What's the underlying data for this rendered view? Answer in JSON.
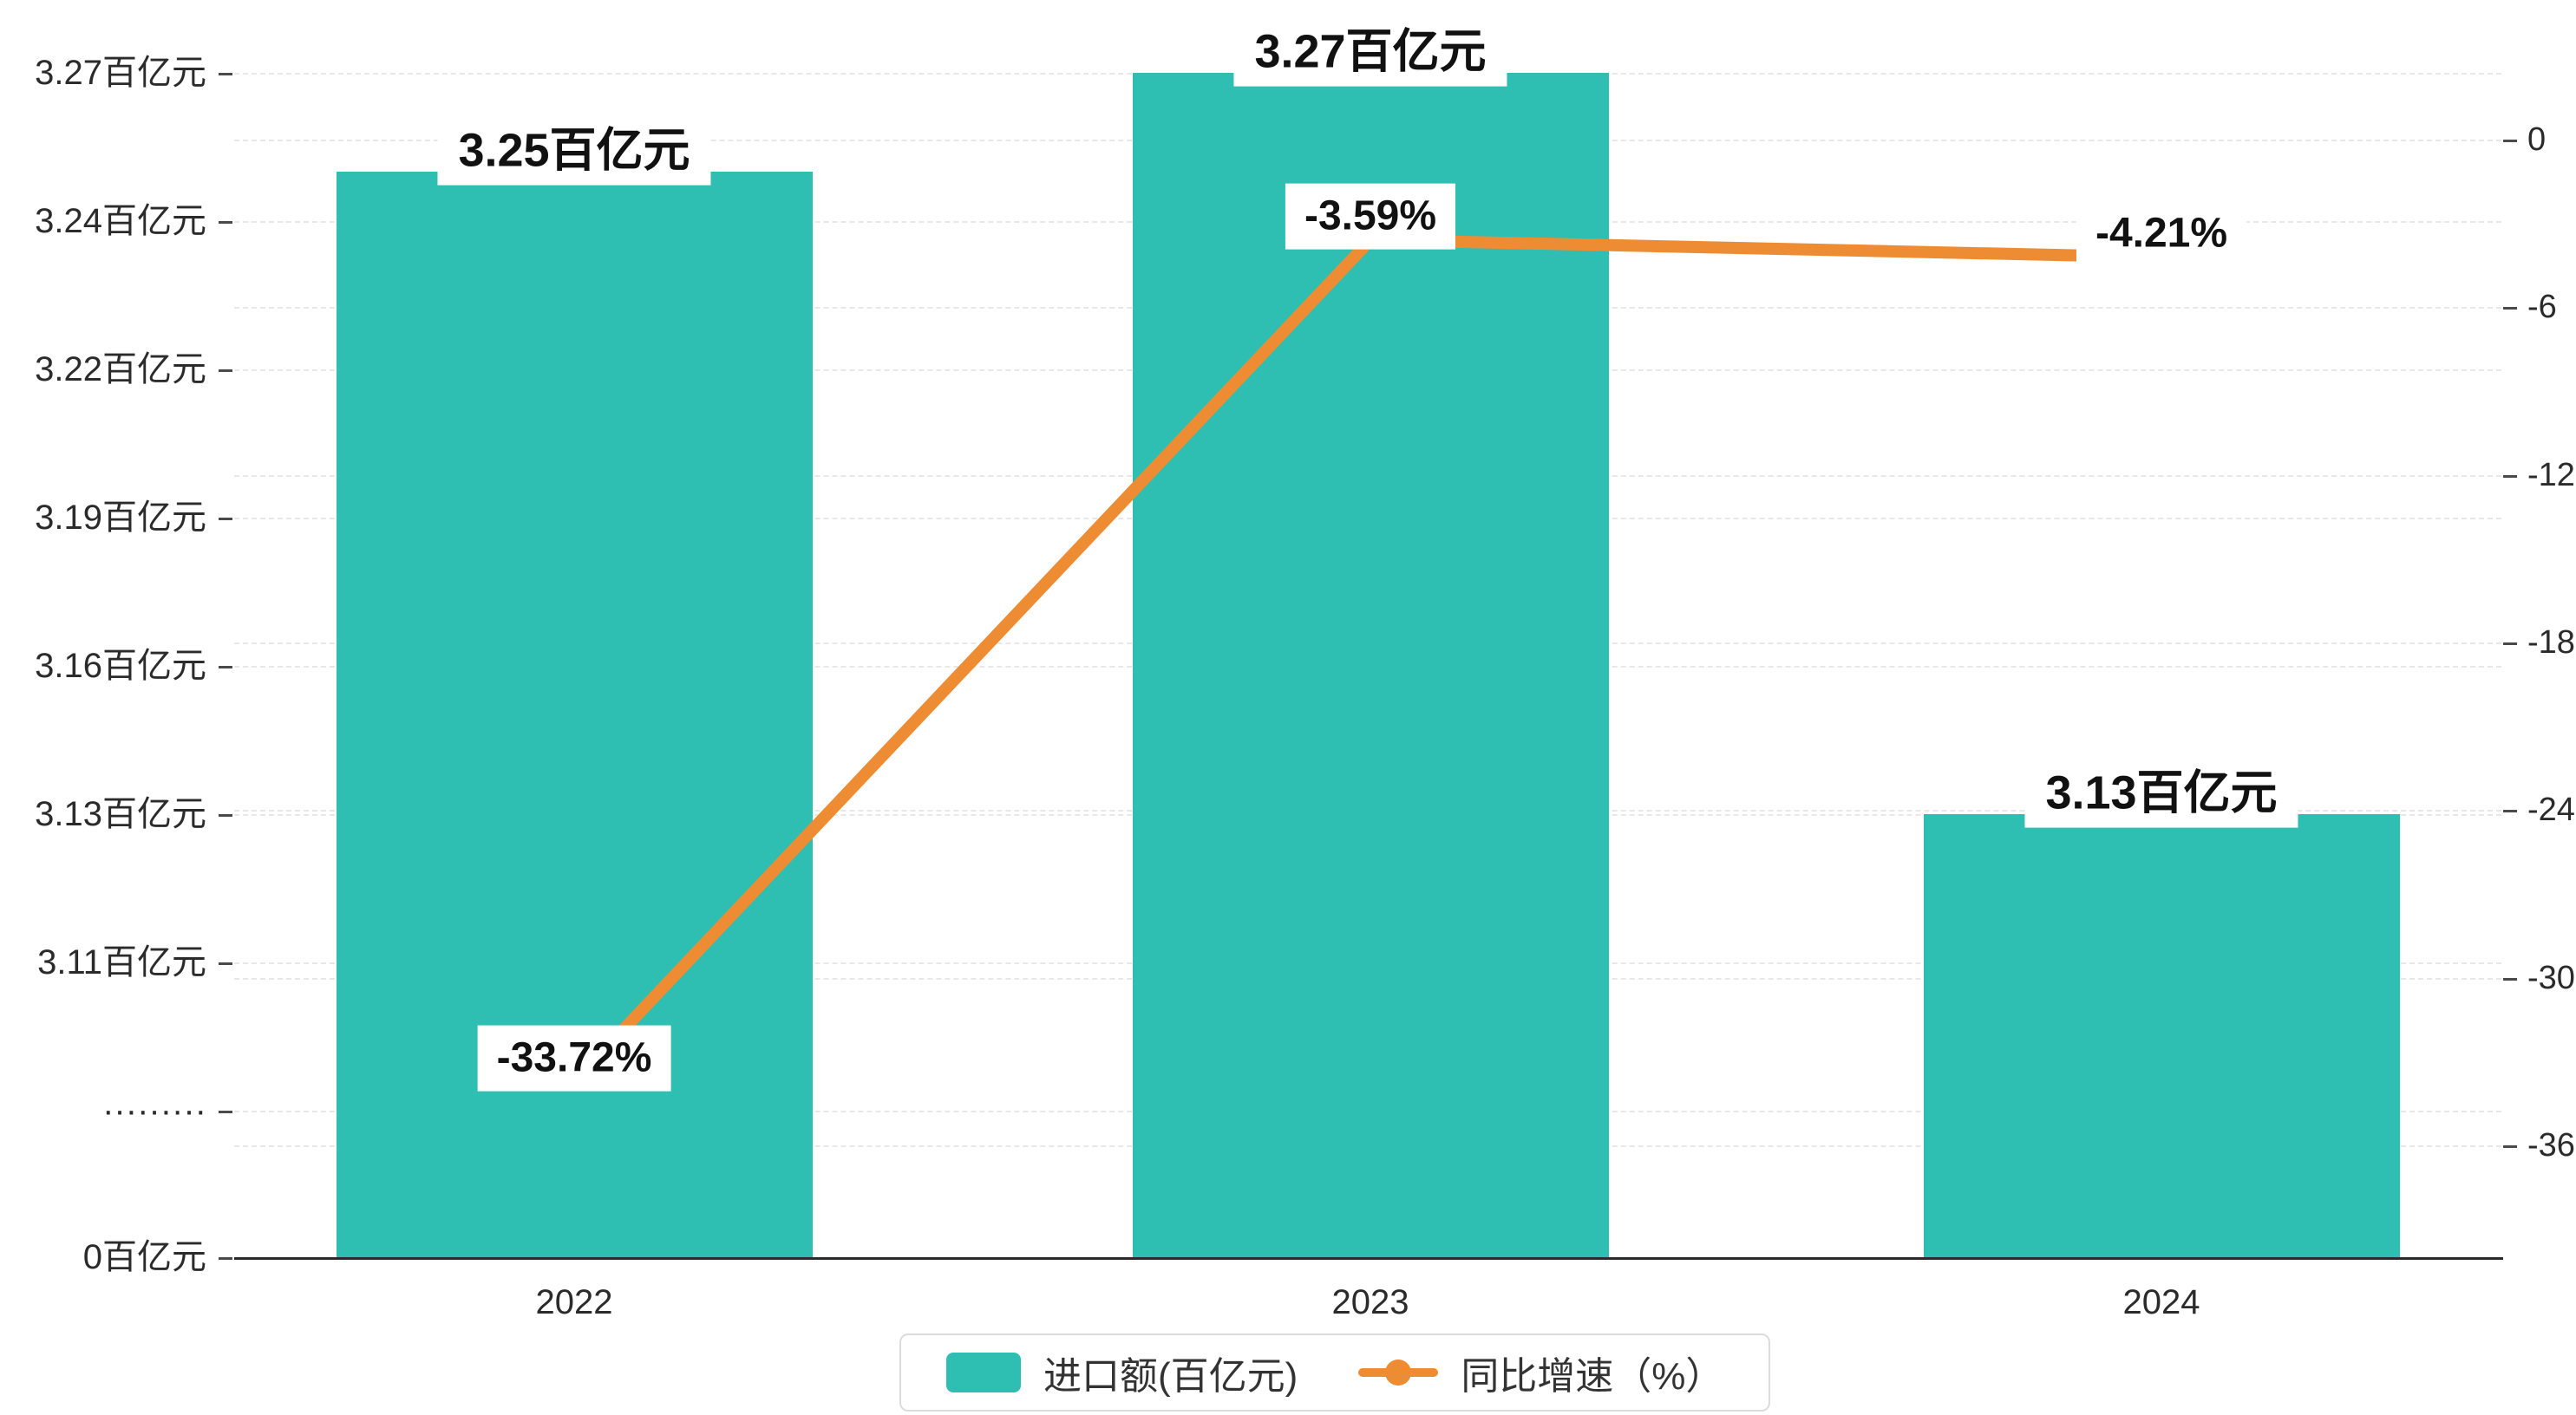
{
  "chart_data": {
    "type": "bar",
    "combo": "bar+line",
    "categories": [
      "2022",
      "2023",
      "2024"
    ],
    "series": [
      {
        "name": "进口额(百亿元)",
        "type": "bar",
        "axis": "left",
        "values": [
          3.25,
          3.27,
          3.13
        ],
        "value_labels": [
          "3.25百亿元",
          "3.27百亿元",
          "3.13百亿元"
        ],
        "color": "#2ebfb2"
      },
      {
        "name": "同比增速（%）",
        "type": "line",
        "axis": "right",
        "values": [
          -33.72,
          -3.59,
          -4.21
        ],
        "value_labels": [
          "-33.72%",
          "-3.59%",
          "-4.21%"
        ],
        "color": "#ed8c33"
      }
    ],
    "left_axis": {
      "tick_labels": [
        "3.27百亿元",
        "3.24百亿元",
        "3.22百亿元",
        "3.19百亿元",
        "3.16百亿元",
        "3.13百亿元",
        "3.11百亿元",
        "·········",
        "0百亿元"
      ],
      "tick_values": [
        3.27,
        3.24,
        3.22,
        3.19,
        3.16,
        3.13,
        3.11,
        null,
        0
      ],
      "broken": true
    },
    "right_axis": {
      "tick_labels": [
        "0",
        "-6",
        "-12",
        "-18",
        "-24",
        "-30",
        "-36"
      ],
      "tick_values": [
        0,
        -6,
        -12,
        -18,
        -24,
        -30,
        -36
      ],
      "min": -36,
      "max": 0
    },
    "legend": [
      {
        "label": "进口额(百亿元)",
        "swatch": "bar"
      },
      {
        "label": "同比增速（%）",
        "swatch": "line"
      }
    ],
    "grid": "dashed"
  },
  "colors": {
    "bar": "#2ebfb2",
    "line": "#ed8c33",
    "axis_text": "#2b2b2b",
    "grid_line": "#e8e8e8",
    "label_text": "#111111",
    "legend_border": "#dcdcdc"
  }
}
